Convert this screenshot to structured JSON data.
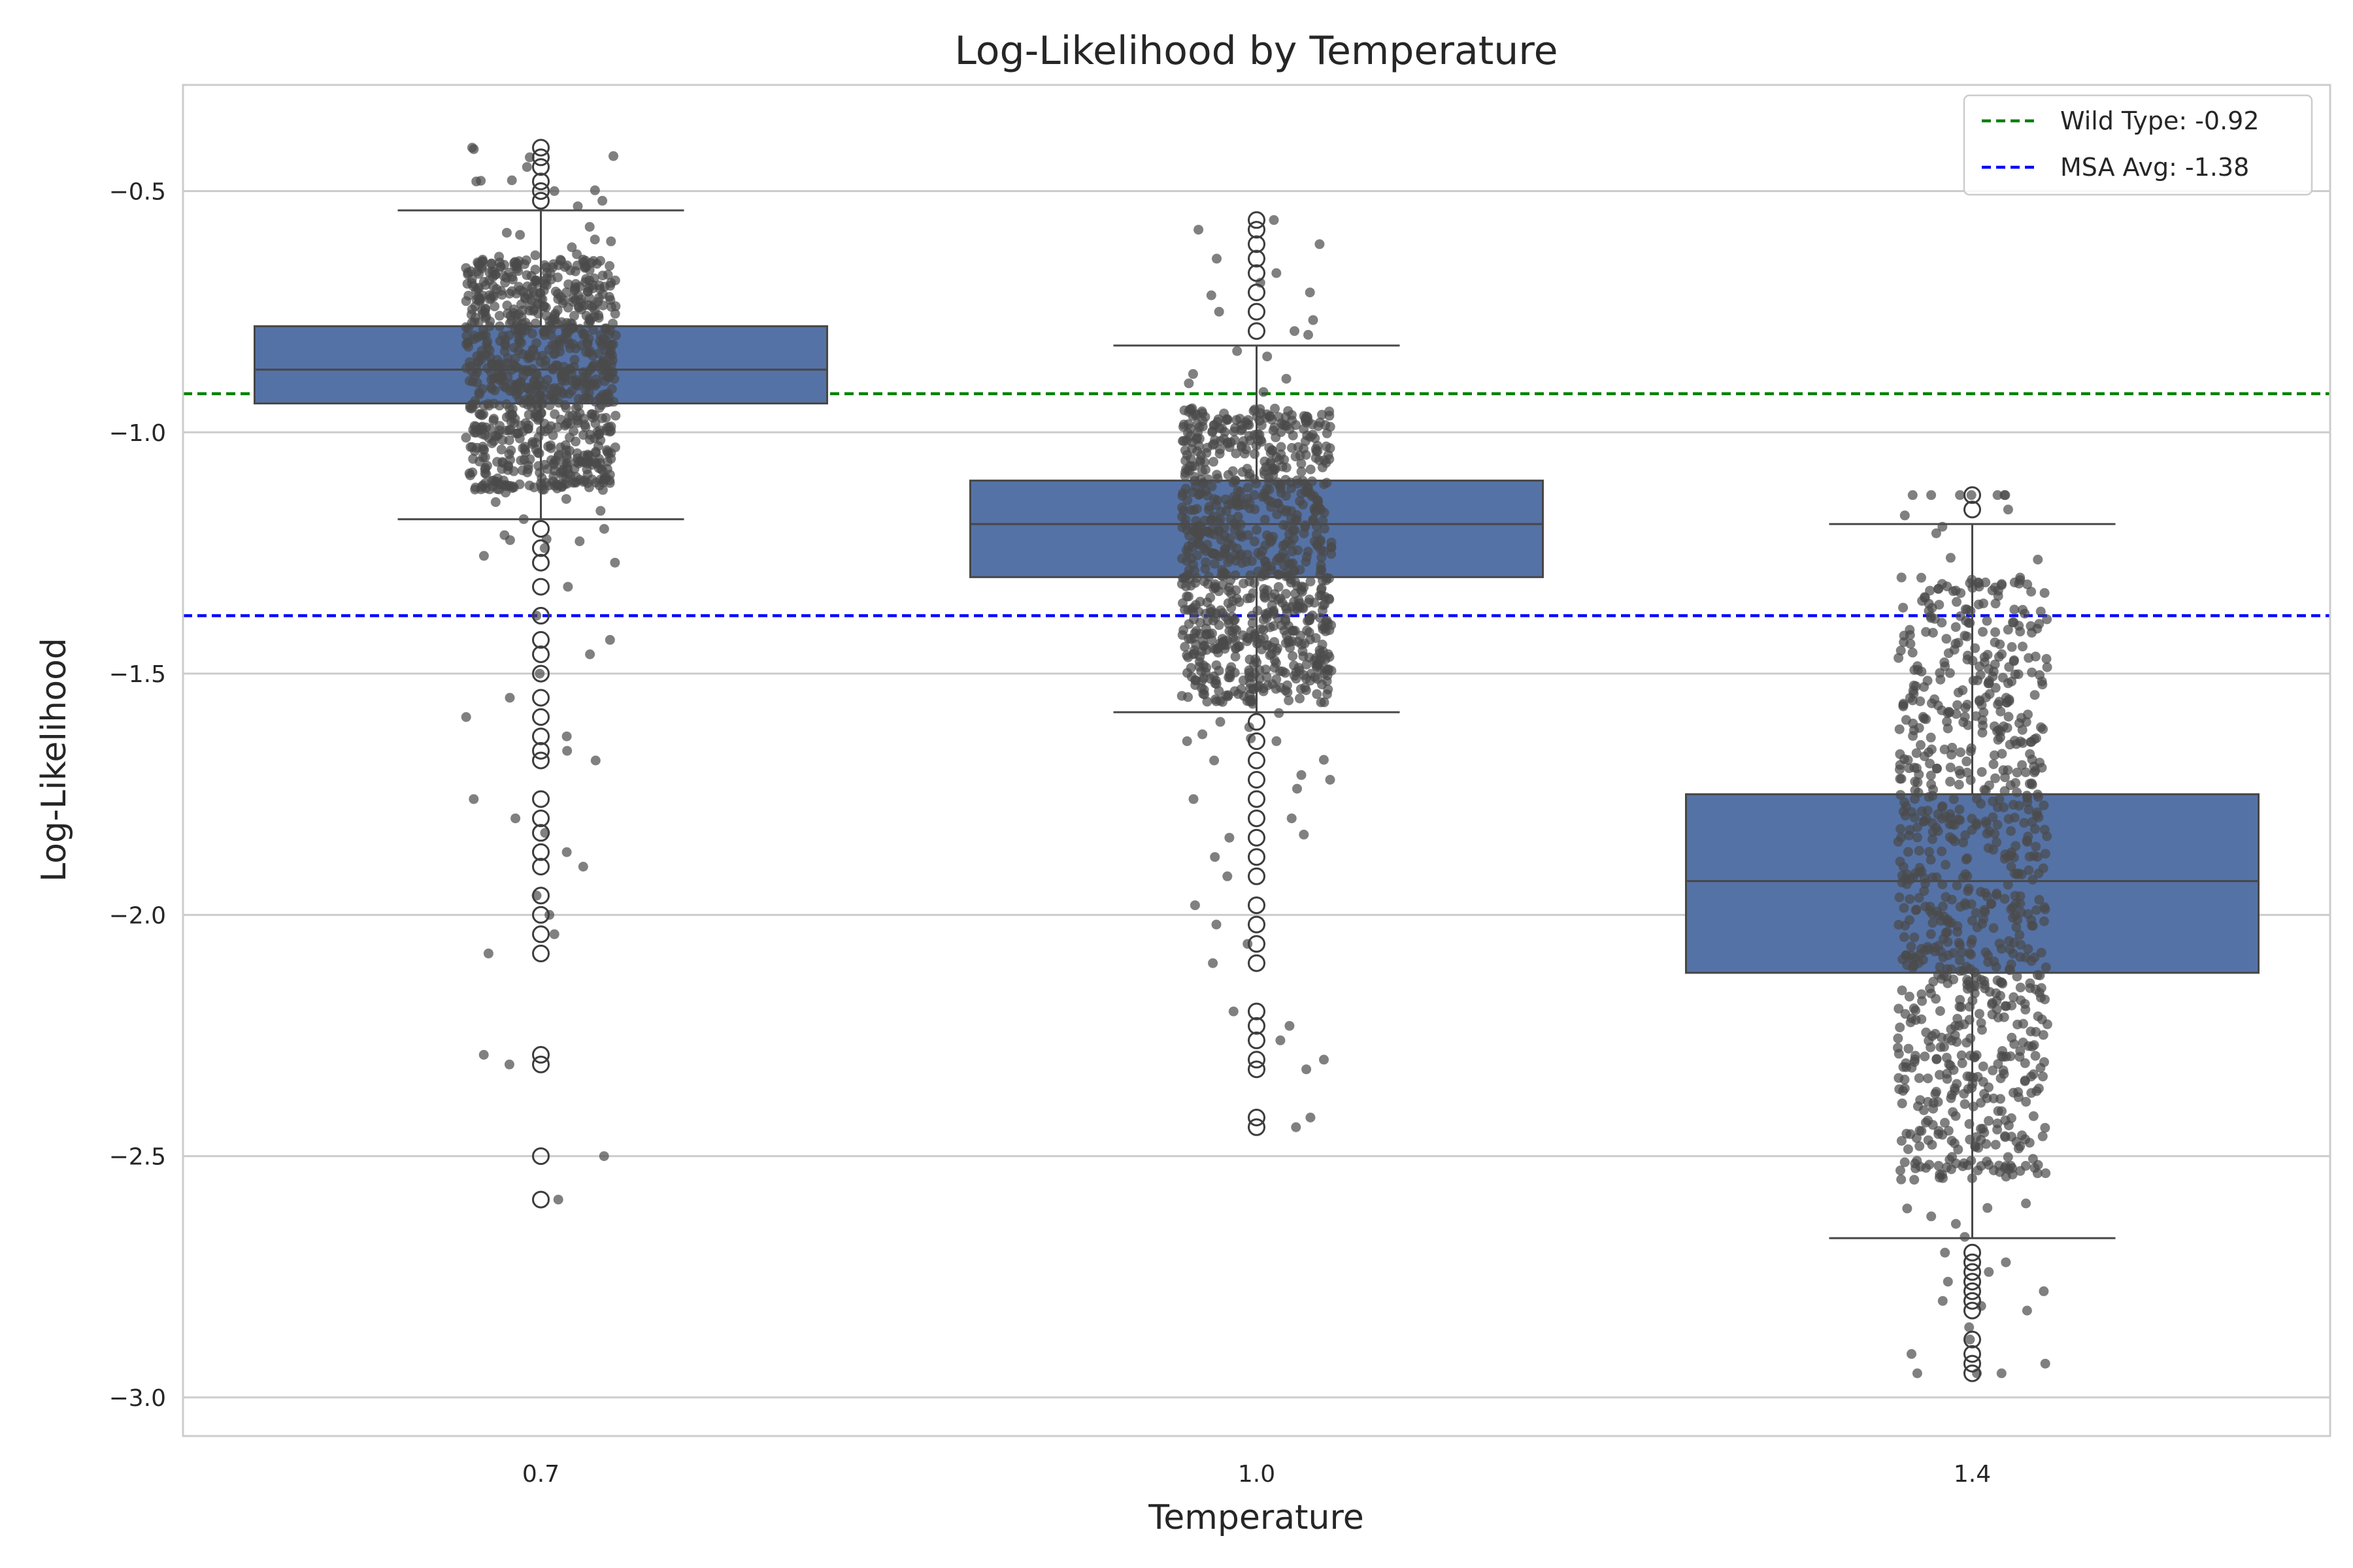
{
  "chart_data": {
    "type": "box",
    "title": "Log-Likelihood by Temperature",
    "xlabel": "Temperature",
    "ylabel": "Log-Likelihood",
    "categories": [
      "0.7",
      "1.0",
      "1.4"
    ],
    "ylim": [
      -3.08,
      -0.28
    ],
    "yticks": [
      -0.5,
      -1.0,
      -1.5,
      -2.0,
      -2.5,
      -3.0
    ],
    "ytick_labels": [
      "−0.5",
      "−1.0",
      "−1.5",
      "−2.0",
      "−2.5",
      "−3.0"
    ],
    "grid": true,
    "box_color": "#5572a6",
    "point_color": "#4a4a4a",
    "boxes": [
      {
        "category": "0.7",
        "whisker_low": -1.18,
        "q1": -0.94,
        "median": -0.87,
        "q3": -0.78,
        "whisker_high": -0.54,
        "outliers": [
          -0.41,
          -0.43,
          -0.45,
          -0.48,
          -0.5,
          -0.52,
          -1.2,
          -1.24,
          -1.27,
          -1.32,
          -1.38,
          -1.43,
          -1.46,
          -1.5,
          -1.55,
          -1.59,
          -1.63,
          -1.66,
          -1.68,
          -1.76,
          -1.8,
          -1.83,
          -1.87,
          -1.9,
          -1.96,
          -2.0,
          -2.04,
          -2.08,
          -2.29,
          -2.31,
          -2.5,
          -2.59
        ],
        "point_range": [
          -2.59,
          -0.41
        ],
        "point_core": [
          -1.12,
          -0.64
        ]
      },
      {
        "category": "1.0",
        "whisker_low": -1.58,
        "q1": -1.3,
        "median": -1.19,
        "q3": -1.1,
        "whisker_high": -0.82,
        "outliers": [
          -0.56,
          -0.58,
          -0.61,
          -0.64,
          -0.67,
          -0.71,
          -0.75,
          -0.79,
          -1.6,
          -1.64,
          -1.68,
          -1.72,
          -1.76,
          -1.8,
          -1.84,
          -1.88,
          -1.92,
          -1.98,
          -2.02,
          -2.06,
          -2.1,
          -2.2,
          -2.23,
          -2.26,
          -2.3,
          -2.32,
          -2.42,
          -2.44
        ],
        "point_range": [
          -2.44,
          -0.56
        ],
        "point_core": [
          -1.56,
          -0.95
        ]
      },
      {
        "category": "1.4",
        "whisker_low": -2.67,
        "q1": -2.12,
        "median": -1.93,
        "q3": -1.75,
        "whisker_high": -1.19,
        "outliers": [
          -1.13,
          -1.16,
          -2.7,
          -2.72,
          -2.74,
          -2.76,
          -2.78,
          -2.8,
          -2.82,
          -2.88,
          -2.91,
          -2.93,
          -2.95
        ],
        "point_range": [
          -2.95,
          -1.13
        ],
        "point_core": [
          -2.55,
          -1.3
        ]
      }
    ],
    "reference_lines": [
      {
        "label": "Wild Type: -0.92",
        "value": -0.92,
        "color": "#008000"
      },
      {
        "label": "MSA Avg: -1.38",
        "value": -1.38,
        "color": "#0000ff"
      }
    ],
    "legend_position": "top-right"
  }
}
